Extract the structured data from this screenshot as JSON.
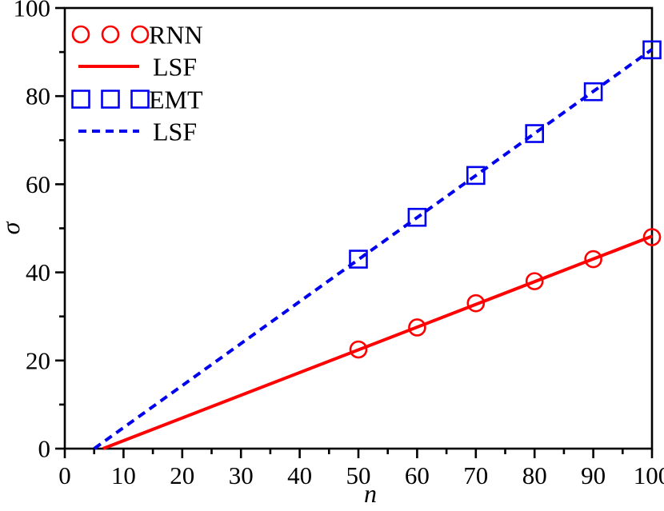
{
  "chart_data": {
    "type": "line",
    "title": "",
    "xlabel": "n",
    "ylabel": "σ",
    "xlim": [
      0,
      100
    ],
    "ylim": [
      0,
      100
    ],
    "x_major_tick_step": 10,
    "x_minor_tick_step": 5,
    "y_major_tick_step": 20,
    "y_minor_tick_step": 10,
    "x_tick_labels": [
      "0",
      "10",
      "20",
      "30",
      "40",
      "50",
      "60",
      "70",
      "80",
      "90",
      "100"
    ],
    "y_tick_labels": [
      "0",
      "20",
      "40",
      "60",
      "80",
      "100"
    ],
    "grid": false,
    "legend_position": "top-left",
    "colors": {
      "rnn_red": "#ff0000",
      "emt_blue": "#0000ee",
      "axis_black": "#000000",
      "background": "#ffffff"
    },
    "series": [
      {
        "name": "RNN",
        "type": "scatter",
        "marker": "circle",
        "color": "#ff0000",
        "x": [
          50,
          60,
          70,
          80,
          90,
          100
        ],
        "y": [
          22.5,
          27.5,
          33,
          38,
          43,
          48
        ]
      },
      {
        "name": "LSF",
        "type": "line",
        "style": "solid",
        "color": "#ff0000",
        "x": [
          6.5,
          100
        ],
        "y": [
          0,
          48.2
        ]
      },
      {
        "name": "EMT",
        "type": "scatter",
        "marker": "square",
        "color": "#0000ee",
        "x": [
          50,
          60,
          70,
          80,
          90,
          100
        ],
        "y": [
          43,
          52.5,
          62,
          71.5,
          81,
          90.5
        ]
      },
      {
        "name": "LSF",
        "type": "line",
        "style": "dashed",
        "color": "#0000ee",
        "x": [
          5,
          100
        ],
        "y": [
          0,
          90.6
        ]
      }
    ],
    "legend": [
      {
        "label": "RNN",
        "swatch": "markers",
        "marker": "circle",
        "color": "#ff0000"
      },
      {
        "label": "LSF",
        "swatch": "line",
        "style": "solid",
        "color": "#ff0000"
      },
      {
        "label": "EMT",
        "swatch": "markers",
        "marker": "square",
        "color": "#0000ee"
      },
      {
        "label": "LSF",
        "swatch": "line",
        "style": "dashed",
        "color": "#0000ee"
      }
    ]
  }
}
